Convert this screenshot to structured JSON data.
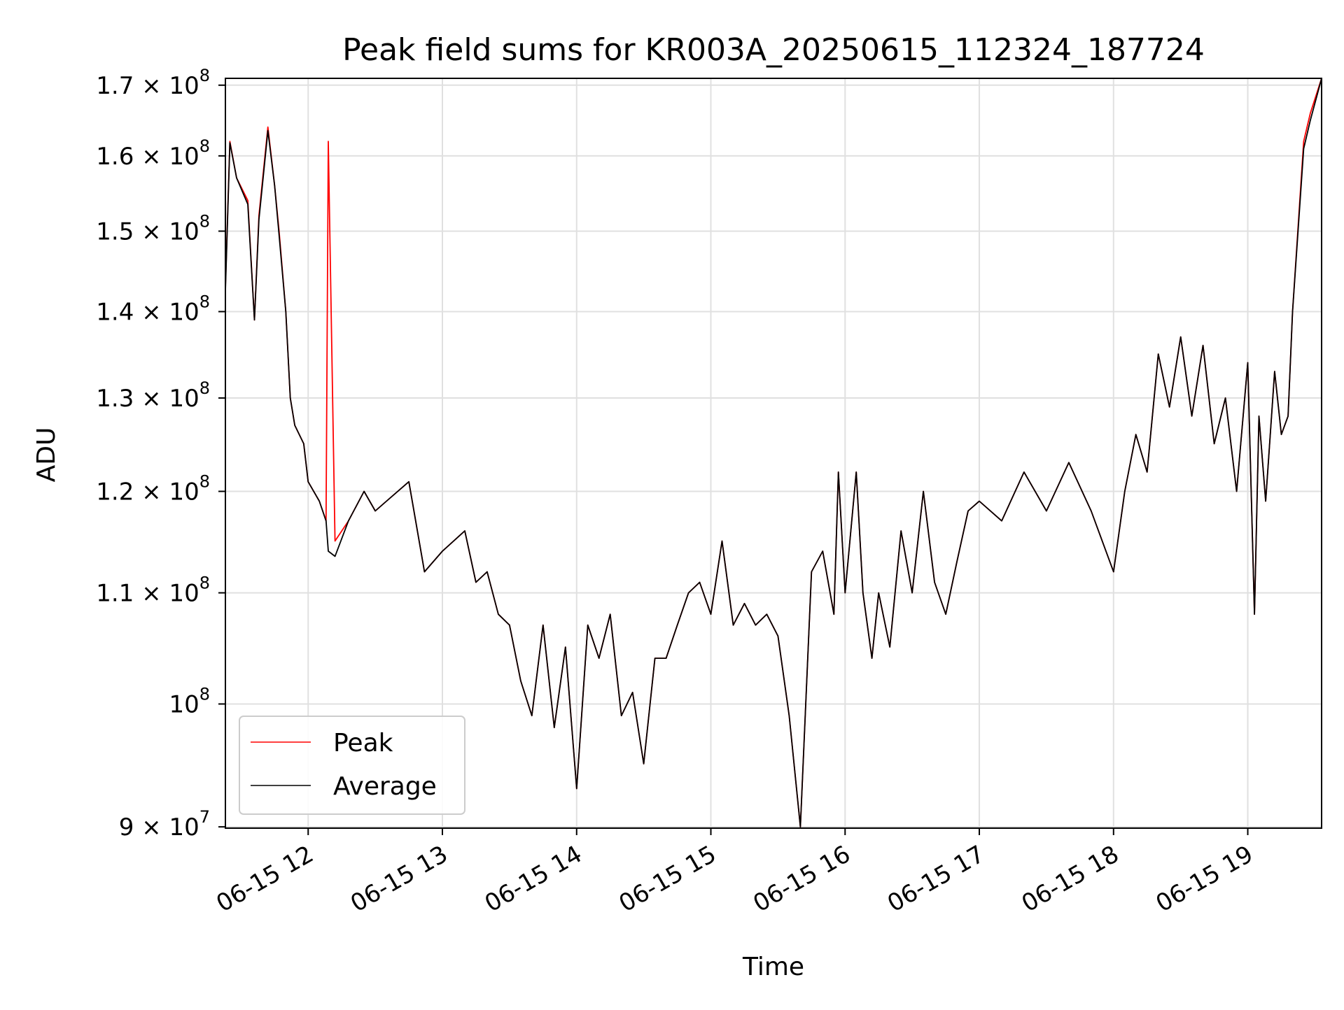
{
  "chart_data": {
    "type": "line",
    "title": "Peak field sums for KR003A_20250615_112324_187724",
    "xlabel": "Time",
    "ylabel": "ADU",
    "yscale": "log",
    "ylim": [
      89900000,
      171000000
    ],
    "grid": true,
    "legend_position": "lower-left",
    "xticks": [
      "06-15 12",
      "06-15 13",
      "06-15 14",
      "06-15 15",
      "06-15 16",
      "06-15 17",
      "06-15 18",
      "06-15 19"
    ],
    "yticks": [
      {
        "value": 90000000,
        "mantissa": "9",
        "exponent": "7"
      },
      {
        "value": 100000000,
        "mantissa": "",
        "exponent": "8"
      },
      {
        "value": 110000000,
        "mantissa": "1.1",
        "exponent": "8"
      },
      {
        "value": 120000000,
        "mantissa": "1.2",
        "exponent": "8"
      },
      {
        "value": 130000000,
        "mantissa": "1.3",
        "exponent": "8"
      },
      {
        "value": 140000000,
        "mantissa": "1.4",
        "exponent": "8"
      },
      {
        "value": 150000000,
        "mantissa": "1.5",
        "exponent": "8"
      },
      {
        "value": 160000000,
        "mantissa": "1.6",
        "exponent": "8"
      },
      {
        "value": 170000000,
        "mantissa": "1.7",
        "exponent": "8"
      }
    ],
    "x": [
      "06-15 11:23",
      "06-15 11:25",
      "06-15 11:28",
      "06-15 11:33",
      "06-15 11:36",
      "06-15 11:38",
      "06-15 11:42",
      "06-15 11:45",
      "06-15 11:47",
      "06-15 11:50",
      "06-15 11:52",
      "06-15 11:54",
      "06-15 11:58",
      "06-15 12:00",
      "06-15 12:05",
      "06-15 12:08",
      "06-15 12:09",
      "06-15 12:12",
      "06-15 12:18",
      "06-15 12:25",
      "06-15 12:30",
      "06-15 12:35",
      "06-15 12:45",
      "06-15 12:52",
      "06-15 13:00",
      "06-15 13:10",
      "06-15 13:15",
      "06-15 13:20",
      "06-15 13:25",
      "06-15 13:30",
      "06-15 13:35",
      "06-15 13:40",
      "06-15 13:45",
      "06-15 13:50",
      "06-15 13:55",
      "06-15 14:00",
      "06-15 14:05",
      "06-15 14:10",
      "06-15 14:15",
      "06-15 14:20",
      "06-15 14:25",
      "06-15 14:30",
      "06-15 14:35",
      "06-15 14:40",
      "06-15 14:45",
      "06-15 14:50",
      "06-15 14:55",
      "06-15 15:00",
      "06-15 15:05",
      "06-15 15:10",
      "06-15 15:15",
      "06-15 15:20",
      "06-15 15:25",
      "06-15 15:30",
      "06-15 15:35",
      "06-15 15:40",
      "06-15 15:45",
      "06-15 15:50",
      "06-15 15:55",
      "06-15 15:57",
      "06-15 16:00",
      "06-15 16:05",
      "06-15 16:08",
      "06-15 16:12",
      "06-15 16:15",
      "06-15 16:20",
      "06-15 16:25",
      "06-15 16:30",
      "06-15 16:35",
      "06-15 16:40",
      "06-15 16:45",
      "06-15 16:50",
      "06-15 16:55",
      "06-15 17:00",
      "06-15 17:10",
      "06-15 17:20",
      "06-15 17:30",
      "06-15 17:40",
      "06-15 17:50",
      "06-15 18:00",
      "06-15 18:05",
      "06-15 18:10",
      "06-15 18:15",
      "06-15 18:20",
      "06-15 18:25",
      "06-15 18:30",
      "06-15 18:35",
      "06-15 18:40",
      "06-15 18:45",
      "06-15 18:50",
      "06-15 18:55",
      "06-15 19:00",
      "06-15 19:03",
      "06-15 19:05",
      "06-15 19:08",
      "06-15 19:12",
      "06-15 19:15",
      "06-15 19:18",
      "06-15 19:20",
      "06-15 19:25",
      "06-15 19:28",
      "06-15 19:33"
    ],
    "series": [
      {
        "name": "Peak",
        "color": "#ff0000",
        "values": [
          143000000,
          162000000,
          157000000,
          154000000,
          139000000,
          152000000,
          164000000,
          156000000,
          150000000,
          140000000,
          130000000,
          127000000,
          125000000,
          121000000,
          119000000,
          117000000,
          162000000,
          115000000,
          117000000,
          120000000,
          118000000,
          119000000,
          121000000,
          112000000,
          114000000,
          116000000,
          111000000,
          112000000,
          108000000,
          107000000,
          102000000,
          99000000,
          107000000,
          98000000,
          105000000,
          93000000,
          107000000,
          104000000,
          108000000,
          99000000,
          101000000,
          95000000,
          104000000,
          104000000,
          107000000,
          110000000,
          111000000,
          108000000,
          115000000,
          107000000,
          109000000,
          107000000,
          108000000,
          106000000,
          99000000,
          90000000,
          112000000,
          114000000,
          108000000,
          122000000,
          110000000,
          122000000,
          110000000,
          104000000,
          110000000,
          105000000,
          116000000,
          110000000,
          120000000,
          111000000,
          108000000,
          113000000,
          118000000,
          119000000,
          117000000,
          122000000,
          118000000,
          123000000,
          118000000,
          112000000,
          120000000,
          126000000,
          122000000,
          135000000,
          129000000,
          137000000,
          128000000,
          136000000,
          125000000,
          130000000,
          120000000,
          134000000,
          108000000,
          128000000,
          119000000,
          133000000,
          126000000,
          128000000,
          140000000,
          162000000,
          166000000,
          172000000
        ]
      },
      {
        "name": "Average",
        "color": "#000000",
        "values": [
          142500000,
          161800000,
          157000000,
          153500000,
          139000000,
          151500000,
          163500000,
          156000000,
          149500000,
          140000000,
          130000000,
          127000000,
          125000000,
          121000000,
          119000000,
          117000000,
          114000000,
          113500000,
          117000000,
          120000000,
          118000000,
          119000000,
          121000000,
          112000000,
          114000000,
          116000000,
          111000000,
          112000000,
          108000000,
          107000000,
          102000000,
          99000000,
          107000000,
          98000000,
          105000000,
          93000000,
          107000000,
          104000000,
          108000000,
          99000000,
          101000000,
          95000000,
          104000000,
          104000000,
          107000000,
          110000000,
          111000000,
          108000000,
          115000000,
          107000000,
          109000000,
          107000000,
          108000000,
          106000000,
          99000000,
          90000000,
          112000000,
          114000000,
          108000000,
          122000000,
          110000000,
          122000000,
          110000000,
          104000000,
          110000000,
          105000000,
          116000000,
          110000000,
          120000000,
          111000000,
          108000000,
          113000000,
          118000000,
          119000000,
          117000000,
          122000000,
          118000000,
          123000000,
          118000000,
          112000000,
          120000000,
          126000000,
          122000000,
          135000000,
          129000000,
          137000000,
          128000000,
          136000000,
          125000000,
          130000000,
          120000000,
          134000000,
          108000000,
          128000000,
          119000000,
          133000000,
          126000000,
          128000000,
          140000000,
          161000000,
          165000000,
          171000000
        ]
      }
    ]
  }
}
